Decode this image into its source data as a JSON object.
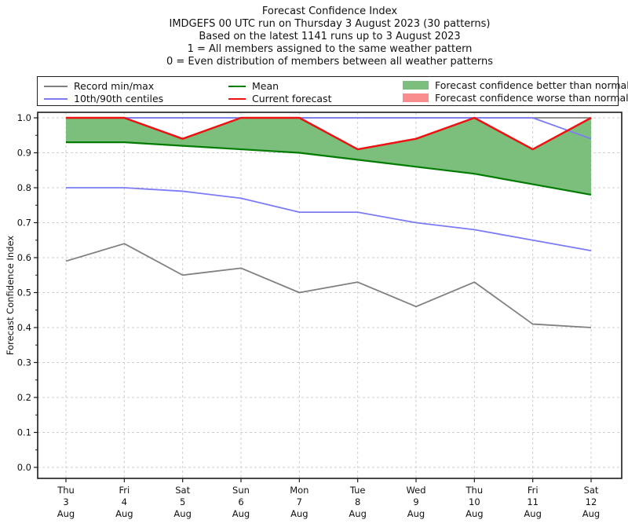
{
  "chart_data": {
    "type": "line",
    "title_lines": [
      "Forecast Confidence Index",
      "IMDGEFS 00 UTC run on Thursday 3 August 2023 (30 patterns)",
      "Based on the latest 1141 runs up to 3 August 2023",
      "1 = All members assigned to the same weather pattern",
      "0 = Even distribution of members between all weather patterns"
    ],
    "ylabel": "Forecast Confidence Index",
    "ylim": [
      0.0,
      1.0
    ],
    "yticks": [
      0.0,
      0.1,
      0.2,
      0.3,
      0.4,
      0.5,
      0.6,
      0.7,
      0.8,
      0.9,
      1.0
    ],
    "grid": "dashed, both axes",
    "legend_position": "top strip, 3 columns",
    "categories": [
      [
        "Thu",
        "3",
        "Aug"
      ],
      [
        "Fri",
        "4",
        "Aug"
      ],
      [
        "Sat",
        "5",
        "Aug"
      ],
      [
        "Sun",
        "6",
        "Aug"
      ],
      [
        "Mon",
        "7",
        "Aug"
      ],
      [
        "Tue",
        "8",
        "Aug"
      ],
      [
        "Wed",
        "9",
        "Aug"
      ],
      [
        "Thu",
        "10",
        "Aug"
      ],
      [
        "Fri",
        "11",
        "Aug"
      ],
      [
        "Sat",
        "12",
        "Aug"
      ]
    ],
    "series": [
      {
        "name": "record_max",
        "legend": "Record min/max",
        "color": "#808080",
        "width": 1.8,
        "values": [
          1.0,
          1.0,
          1.0,
          1.0,
          1.0,
          1.0,
          1.0,
          1.0,
          1.0,
          1.0
        ]
      },
      {
        "name": "record_min",
        "legend": "Record min/max",
        "color": "#808080",
        "width": 1.8,
        "values": [
          0.59,
          0.64,
          0.55,
          0.57,
          0.5,
          0.53,
          0.46,
          0.53,
          0.41,
          0.4
        ]
      },
      {
        "name": "p90_centile",
        "legend": "10th/90th centiles",
        "color": "#7b7bf7",
        "width": 1.8,
        "values": [
          1.0,
          1.0,
          1.0,
          1.0,
          1.0,
          1.0,
          1.0,
          1.0,
          1.0,
          0.94
        ]
      },
      {
        "name": "p10_centile",
        "legend": "10th/90th centiles",
        "color": "#7b7bf7",
        "width": 1.8,
        "values": [
          0.8,
          0.8,
          0.79,
          0.77,
          0.73,
          0.73,
          0.7,
          0.68,
          0.65,
          0.62
        ]
      },
      {
        "name": "mean",
        "legend": "Mean",
        "color": "#007c00",
        "width": 2.2,
        "values": [
          0.93,
          0.93,
          0.92,
          0.91,
          0.9,
          0.88,
          0.86,
          0.84,
          0.81,
          0.78
        ]
      },
      {
        "name": "current_forecast",
        "legend": "Current forecast",
        "color": "#ee1111",
        "width": 2.5,
        "values": [
          1.0,
          1.0,
          0.94,
          1.0,
          1.0,
          0.91,
          0.94,
          1.0,
          0.91,
          1.0
        ]
      }
    ],
    "fill_between": {
      "upper": "current_forecast",
      "lower": "mean",
      "color": "#7cbe7c",
      "meaning": "Forecast confidence better than normal"
    }
  },
  "legend": {
    "items": [
      {
        "type": "line",
        "color": "#808080",
        "label": "Record min/max"
      },
      {
        "type": "line",
        "color": "#7b7bf7",
        "label": "10th/90th centiles"
      },
      {
        "type": "line",
        "color": "#007c00",
        "label": "Mean"
      },
      {
        "type": "line",
        "color": "#ee1111",
        "label": "Current forecast"
      },
      {
        "type": "patch",
        "color": "#7cbe7c",
        "label": "Forecast confidence better than normal"
      },
      {
        "type": "patch",
        "color": "#f98d8d",
        "label": "Forecast confidence worse than normal"
      }
    ]
  }
}
